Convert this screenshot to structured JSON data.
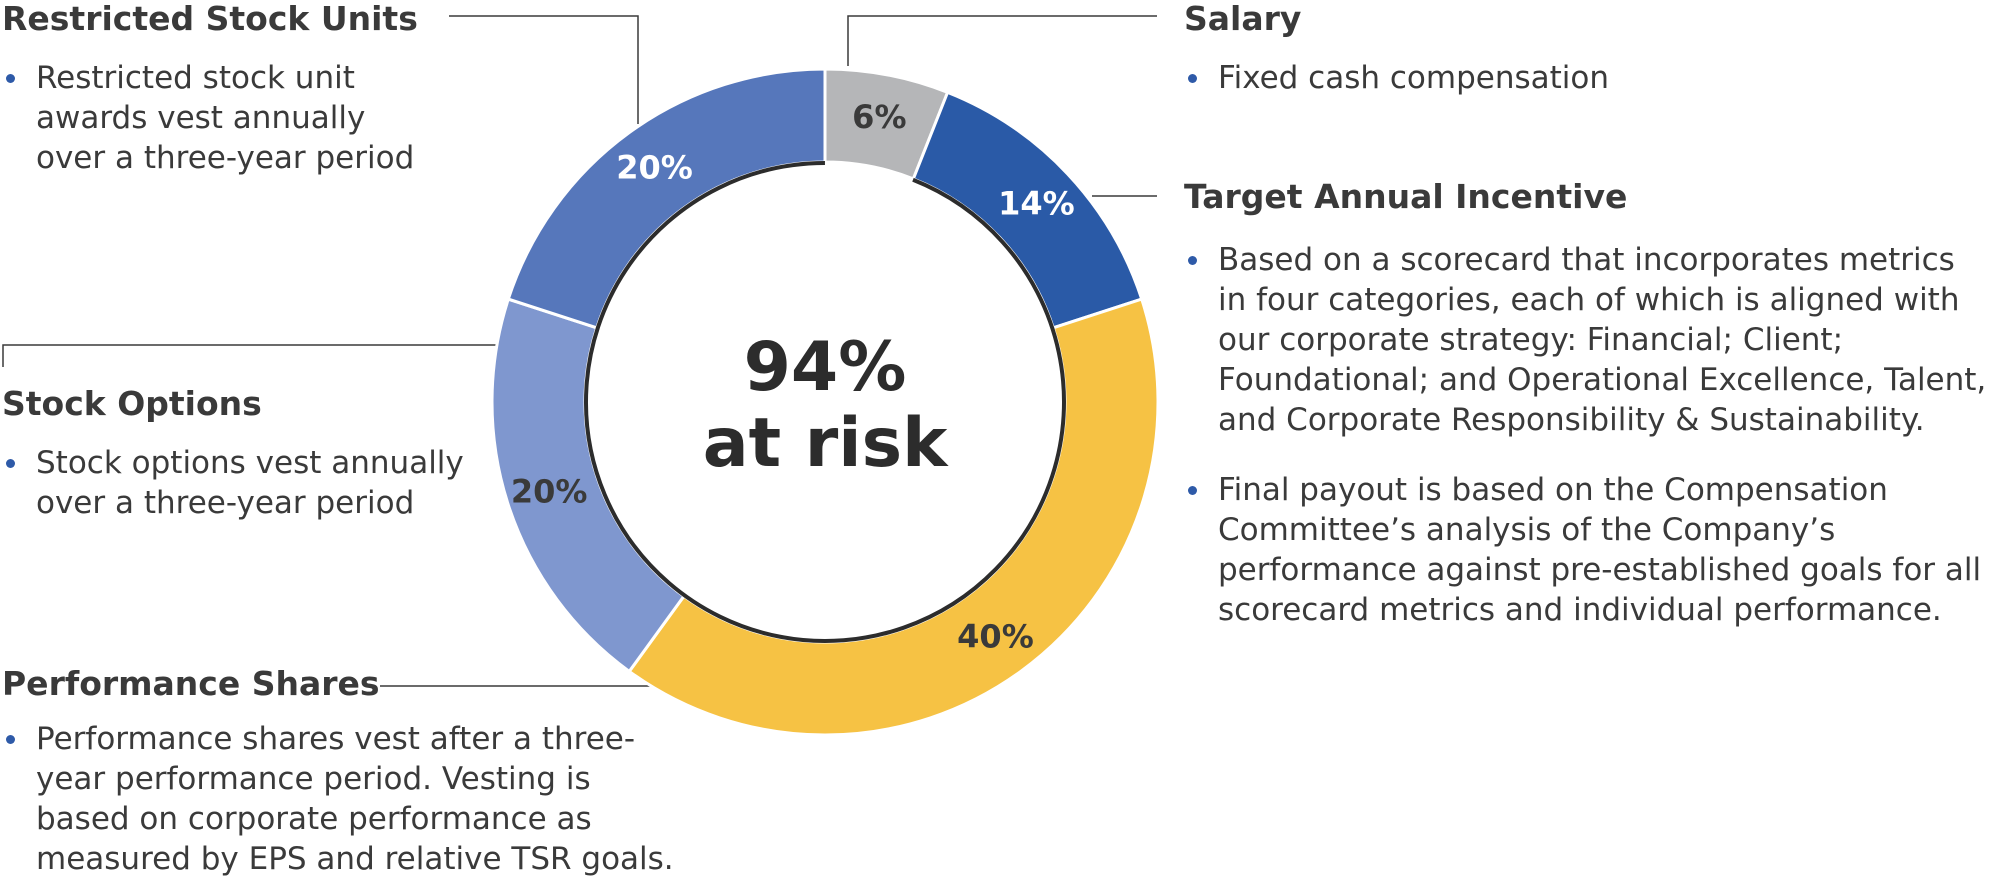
{
  "chart_data": {
    "type": "pie",
    "title": "",
    "center_label": [
      "94%",
      "at risk"
    ],
    "slices": [
      {
        "name": "Salary",
        "value": 6,
        "label": "6%",
        "color": "#b5b6b8",
        "label_color": "#3a3a3a"
      },
      {
        "name": "Target Annual Incentive",
        "value": 14,
        "label": "14%",
        "color": "#2a5aa7",
        "label_color": "#ffffff"
      },
      {
        "name": "Performance Shares",
        "value": 40,
        "label": "40%",
        "color": "#f6c244",
        "label_color": "#3a3a3a"
      },
      {
        "name": "Stock Options",
        "value": 20,
        "label": "20%",
        "color": "#7f97cf",
        "label_color": "#3a3a3a"
      },
      {
        "name": "Restricted Stock Units",
        "value": 20,
        "label": "20%",
        "color": "#5677bb",
        "label_color": "#ffffff"
      }
    ],
    "at_risk_arc_color": "#2c2c2c",
    "bullet_color": "#2e5aa8",
    "leader_line_color": "#3a3a3a"
  },
  "callouts": {
    "rsu": {
      "title": "Restricted Stock Units",
      "bullets": [
        "Restricted stock unit awards vest annually over a three-year period"
      ]
    },
    "salary": {
      "title": "Salary",
      "bullets": [
        "Fixed cash compensation"
      ]
    },
    "tai": {
      "title": "Target Annual Incentive",
      "bullets": [
        "Based on a scorecard that incorporates metrics in four categories, each of which is aligned with our corporate strategy: Financial; Client; Foundational; and Operational Excellence, Talent, and Corporate Responsibility & Sustainability.",
        "Final payout is based on the Compensation Committee’s analysis of the Company’s performance against pre-established goals for all scorecard metrics and individual performance."
      ]
    },
    "options": {
      "title": "Stock Options",
      "bullets": [
        "Stock options vest annually over a three-year period"
      ]
    },
    "performance": {
      "title": "Performance Shares",
      "bullets": [
        "Performance shares vest after a three-year performance period. Vesting is based on corporate performance as measured by EPS and relative TSR goals."
      ]
    }
  }
}
